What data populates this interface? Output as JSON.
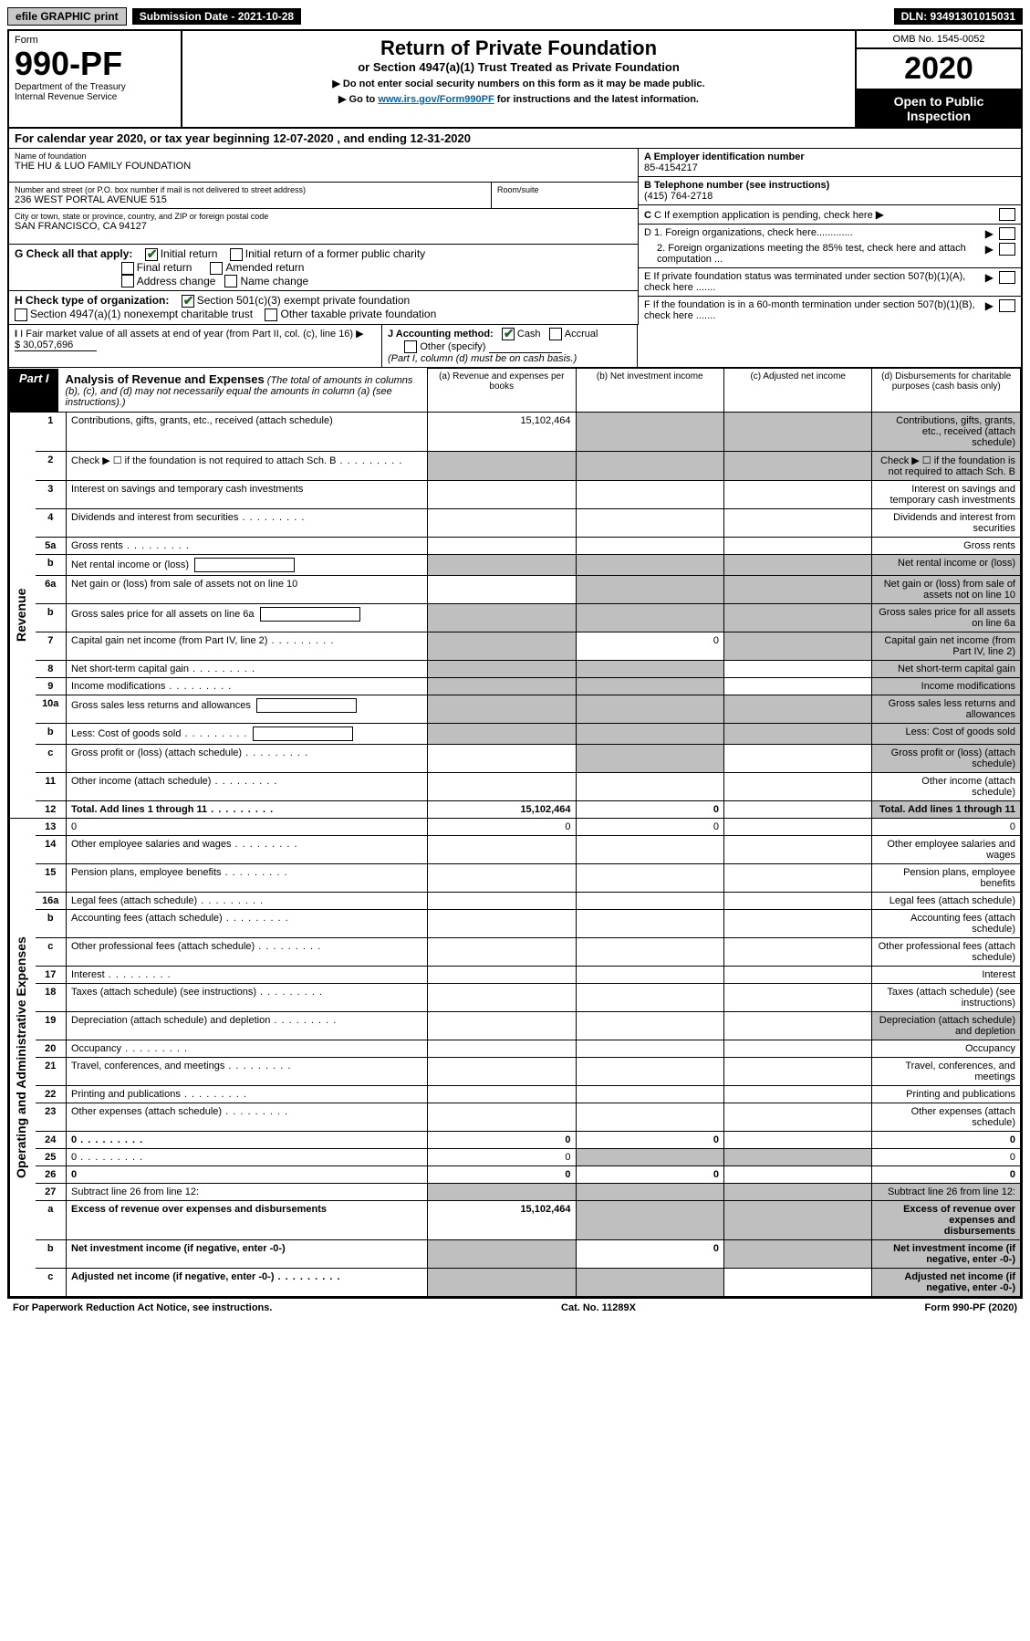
{
  "topbar": {
    "efile_btn": "efile GRAPHIC print",
    "submission_label": "Submission Date - 2021-10-28",
    "dln": "DLN: 93491301015031"
  },
  "header": {
    "form_label": "Form",
    "form_number": "990-PF",
    "dept1": "Department of the Treasury",
    "dept2": "Internal Revenue Service",
    "title": "Return of Private Foundation",
    "subtitle": "or Section 4947(a)(1) Trust Treated as Private Foundation",
    "instr1": "▶ Do not enter social security numbers on this form as it may be made public.",
    "instr2_pre": "▶ Go to ",
    "instr2_link": "www.irs.gov/Form990PF",
    "instr2_post": " for instructions and the latest information.",
    "omb": "OMB No. 1545-0052",
    "year": "2020",
    "open": "Open to Public Inspection"
  },
  "calyear": "For calendar year 2020, or tax year beginning 12-07-2020                           , and ending 12-31-2020",
  "ident": {
    "name_label": "Name of foundation",
    "name": "THE HU & LUO FAMILY FOUNDATION",
    "addr_label": "Number and street (or P.O. box number if mail is not delivered to street address)",
    "addr": "236 WEST PORTAL AVENUE 515",
    "room_label": "Room/suite",
    "room": "",
    "city_label": "City or town, state or province, country, and ZIP or foreign postal code",
    "city": "SAN FRANCISCO, CA  94127",
    "a_label": "A Employer identification number",
    "a_val": "85-4154217",
    "b_label": "B Telephone number (see instructions)",
    "b_val": "(415) 764-2718",
    "c_label": "C If exemption application is pending, check here",
    "d1_label": "D 1. Foreign organizations, check here.............",
    "d2_label": "2. Foreign organizations meeting the 85% test, check here and attach computation ...",
    "e_label": "E  If private foundation status was terminated under section 507(b)(1)(A), check here .......",
    "f_label": "F  If the foundation is in a 60-month termination under section 507(b)(1)(B), check here .......",
    "g_label": "G Check all that apply:",
    "g_opts": [
      "Initial return",
      "Initial return of a former public charity",
      "Final return",
      "Amended return",
      "Address change",
      "Name change"
    ],
    "h_label": "H Check type of organization:",
    "h_opts": [
      "Section 501(c)(3) exempt private foundation",
      "Section 4947(a)(1) nonexempt charitable trust",
      "Other taxable private foundation"
    ],
    "i_label": "I Fair market value of all assets at end of year (from Part II, col. (c), line 16) ▶",
    "i_val": "$  30,057,696",
    "j_label": "J Accounting method:",
    "j_opts": [
      "Cash",
      "Accrual",
      "Other (specify)"
    ],
    "j_note": "(Part I, column (d) must be on cash basis.)"
  },
  "part1": {
    "label": "Part I",
    "title": "Analysis of Revenue and Expenses",
    "title_note": " (The total of amounts in columns (b), (c), and (d) may not necessarily equal the amounts in column (a) (see instructions).)",
    "col_a": "(a)   Revenue and expenses per books",
    "col_b": "(b)   Net investment income",
    "col_c": "(c)   Adjusted net income",
    "col_d": "(d)  Disbursements for charitable purposes (cash basis only)",
    "side_rev": "Revenue",
    "side_exp": "Operating and Administrative Expenses",
    "rows": [
      {
        "n": "1",
        "d": "Contributions, gifts, grants, etc., received (attach schedule)",
        "a": "15,102,464",
        "shade_bcd": true
      },
      {
        "n": "2",
        "d": "Check ▶ ☐ if the foundation is not required to attach Sch. B",
        "dots": true,
        "shade_a": true,
        "shade_bcd": true
      },
      {
        "n": "3",
        "d": "Interest on savings and temporary cash investments"
      },
      {
        "n": "4",
        "d": "Dividends and interest from securities",
        "dots": true
      },
      {
        "n": "5a",
        "d": "Gross rents",
        "dots": true
      },
      {
        "n": "b",
        "d": "Net rental income or (loss)",
        "inline_box": true,
        "shade_all": true
      },
      {
        "n": "6a",
        "d": "Net gain or (loss) from sale of assets not on line 10",
        "shade_bcd": true
      },
      {
        "n": "b",
        "d": "Gross sales price for all assets on line 6a",
        "inline_box": true,
        "shade_all": true
      },
      {
        "n": "7",
        "d": "Capital gain net income (from Part IV, line 2)",
        "dots": true,
        "shade_a": true,
        "b": "0",
        "shade_cd": true
      },
      {
        "n": "8",
        "d": "Net short-term capital gain",
        "dots": true,
        "shade_ab": true,
        "shade_d": true
      },
      {
        "n": "9",
        "d": "Income modifications",
        "dots": true,
        "shade_ab": true,
        "shade_d": true
      },
      {
        "n": "10a",
        "d": "Gross sales less returns and allowances",
        "inline_box": true,
        "shade_all": true
      },
      {
        "n": "b",
        "d": "Less: Cost of goods sold",
        "dots": true,
        "inline_box": true,
        "shade_all": true
      },
      {
        "n": "c",
        "d": "Gross profit or (loss) (attach schedule)",
        "dots": true,
        "shade_bd": true
      },
      {
        "n": "11",
        "d": "Other income (attach schedule)",
        "dots": true
      },
      {
        "n": "12",
        "d": "Total. Add lines 1 through 11",
        "dots": true,
        "bold": true,
        "a": "15,102,464",
        "b": "0",
        "shade_d": true
      },
      {
        "n": "13",
        "d": "0",
        "a": "0",
        "b": "0"
      },
      {
        "n": "14",
        "d": "Other employee salaries and wages",
        "dots": true
      },
      {
        "n": "15",
        "d": "Pension plans, employee benefits",
        "dots": true
      },
      {
        "n": "16a",
        "d": "Legal fees (attach schedule)",
        "dots": true
      },
      {
        "n": "b",
        "d": "Accounting fees (attach schedule)",
        "dots": true
      },
      {
        "n": "c",
        "d": "Other professional fees (attach schedule)",
        "dots": true
      },
      {
        "n": "17",
        "d": "Interest",
        "dots": true
      },
      {
        "n": "18",
        "d": "Taxes (attach schedule) (see instructions)",
        "dots": true
      },
      {
        "n": "19",
        "d": "Depreciation (attach schedule) and depletion",
        "dots": true,
        "shade_d": true
      },
      {
        "n": "20",
        "d": "Occupancy",
        "dots": true
      },
      {
        "n": "21",
        "d": "Travel, conferences, and meetings",
        "dots": true
      },
      {
        "n": "22",
        "d": "Printing and publications",
        "dots": true
      },
      {
        "n": "23",
        "d": "Other expenses (attach schedule)",
        "dots": true
      },
      {
        "n": "24",
        "d": "0",
        "dots": true,
        "bold": true,
        "a": "0",
        "b": "0"
      },
      {
        "n": "25",
        "d": "0",
        "dots": true,
        "a": "0",
        "shade_bc": true
      },
      {
        "n": "26",
        "d": "0",
        "bold": true,
        "a": "0",
        "b": "0"
      },
      {
        "n": "27",
        "d": "Subtract line 26 from line 12:",
        "shade_all": true
      },
      {
        "n": "a",
        "d": "Excess of revenue over expenses and disbursements",
        "bold": true,
        "a": "15,102,464",
        "shade_bcd": true
      },
      {
        "n": "b",
        "d": "Net investment income (if negative, enter -0-)",
        "bold": true,
        "shade_a": true,
        "b": "0",
        "shade_cd": true
      },
      {
        "n": "c",
        "d": "Adjusted net income (if negative, enter -0-)",
        "bold": true,
        "dots": true,
        "shade_ab": true,
        "shade_d": true
      }
    ]
  },
  "footer": {
    "left": "For Paperwork Reduction Act Notice, see instructions.",
    "mid": "Cat. No. 11289X",
    "right": "Form 990-PF (2020)"
  },
  "colors": {
    "shade": "#bfbfbf",
    "link": "#0066b3",
    "check": "#1a6b1a"
  }
}
